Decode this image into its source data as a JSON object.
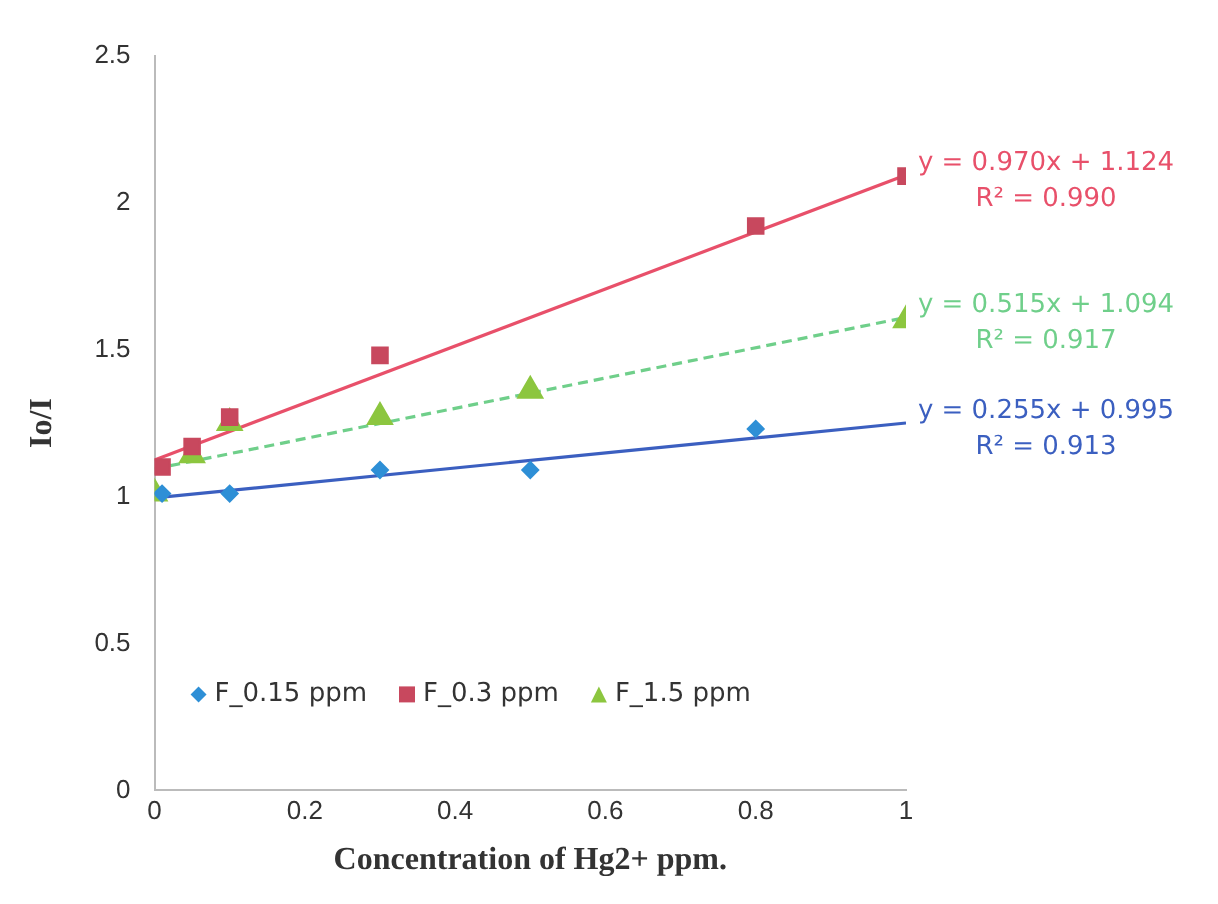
{
  "chart_data": {
    "type": "scatter",
    "xlabel": "Concentration of Hg2+ ppm.",
    "ylabel": "Io/I",
    "xlim": [
      0,
      1
    ],
    "xticks": [
      0,
      0.2,
      0.4,
      0.6,
      0.8,
      1
    ],
    "ylim": [
      0,
      2.5
    ],
    "yticks": [
      0,
      0.5,
      1,
      1.5,
      2,
      2.5
    ],
    "grid": false,
    "legend": "bottom left",
    "series": [
      {
        "name": "F_0.15 ppm",
        "color": "#2e8fd6",
        "marker": "diamond",
        "x": [
          0.01,
          0.1,
          0.3,
          0.5,
          0.8
        ],
        "values": [
          1.01,
          1.01,
          1.09,
          1.09,
          1.23
        ]
      },
      {
        "name": "F_0.3 ppm",
        "color": "#c8485e",
        "marker": "square",
        "x": [
          0.01,
          0.05,
          0.1,
          0.3,
          0.8,
          1
        ],
        "values": [
          1.1,
          1.17,
          1.27,
          1.48,
          1.92,
          2.09
        ]
      },
      {
        "name": "F_1.5 ppm",
        "color": "#8cc63f",
        "marker": "triangle",
        "x": [
          0,
          0.05,
          0.1,
          0.3,
          0.5,
          1
        ],
        "values": [
          1.01,
          1.14,
          1.25,
          1.27,
          1.36,
          1.6
        ]
      },
      {
        "type": "line",
        "color": "#3b5fc0",
        "marker": "none",
        "x": [
          0,
          1
        ],
        "values": [
          0.995,
          1.25
        ]
      },
      {
        "type": "line",
        "color": "#e8506a",
        "marker": "none",
        "x": [
          0,
          1
        ],
        "values": [
          1.124,
          2.094
        ]
      },
      {
        "type": "line",
        "color": "#6fcf8a",
        "marker": "none",
        "line_style": "dashed",
        "x": [
          0,
          1
        ],
        "values": [
          1.094,
          1.609
        ]
      }
    ],
    "annotations": [
      "y = 0.255x + 0.995\nR² = 0.913",
      "y = 0.970x + 1.124\nR² = 0.990",
      "y = 0.515x + 1.094\nR² = 0.917"
    ]
  }
}
